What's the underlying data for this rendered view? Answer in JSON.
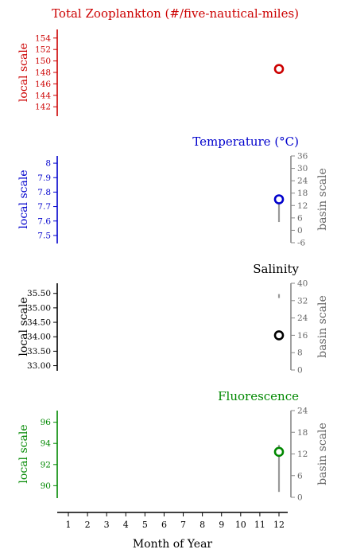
{
  "x_axis": {
    "label": "Month of Year",
    "ticks": [
      "1",
      "2",
      "3",
      "4",
      "5",
      "6",
      "7",
      "8",
      "9",
      "10",
      "11",
      "12"
    ]
  },
  "chart_data": [
    {
      "type": "scatter",
      "title": "Total Zooplankton (#/five-nautical-miles)",
      "color": "#cc0000",
      "left_label": "local scale",
      "left_ticks": [
        142,
        144,
        146,
        148,
        150,
        152,
        154
      ],
      "left_range": [
        140.5,
        155.5
      ],
      "point": {
        "month": 12,
        "value": 148.6
      },
      "right_label": null
    },
    {
      "type": "scatter",
      "title": "Temperature (°C)",
      "color": "#0000cc",
      "left_label": "local scale",
      "left_ticks": [
        7.5,
        7.6,
        7.7,
        7.8,
        7.9,
        8.0
      ],
      "left_range": [
        7.45,
        8.05
      ],
      "point": {
        "month": 12,
        "value": 7.75
      },
      "right_label": "basin scale",
      "right_ticks": [
        -6,
        0,
        6,
        12,
        18,
        24,
        30,
        36
      ],
      "right_range": [
        -6,
        36
      ],
      "basin_range": {
        "month": 12,
        "low": 4,
        "high": 14
      }
    },
    {
      "type": "scatter",
      "title": "Salinity",
      "color": "#000000",
      "left_label": "local scale",
      "left_ticks": [
        "33.00",
        "33.50",
        "34.00",
        "34.50",
        "35.00",
        "35.50"
      ],
      "left_range": [
        32.85,
        35.85
      ],
      "point": {
        "month": 12,
        "value": 34.05
      },
      "right_label": "basin scale",
      "right_ticks": [
        0,
        8,
        16,
        24,
        32,
        40
      ],
      "right_range": [
        0,
        40
      ],
      "basin_range": {
        "month": 12,
        "low": 33.2,
        "high": 35.0
      }
    },
    {
      "type": "scatter",
      "title": "Fluorescence",
      "color": "#008800",
      "left_label": "local scale",
      "left_ticks": [
        90,
        92,
        94,
        96
      ],
      "left_range": [
        88.9,
        97.1
      ],
      "point": {
        "month": 12,
        "value": 93.2
      },
      "right_label": "basin scale",
      "right_ticks": [
        0,
        6,
        12,
        18,
        24
      ],
      "right_range": [
        0,
        24
      ],
      "basin_range": {
        "month": 12,
        "low": 1.5,
        "high": 14.5
      }
    }
  ]
}
